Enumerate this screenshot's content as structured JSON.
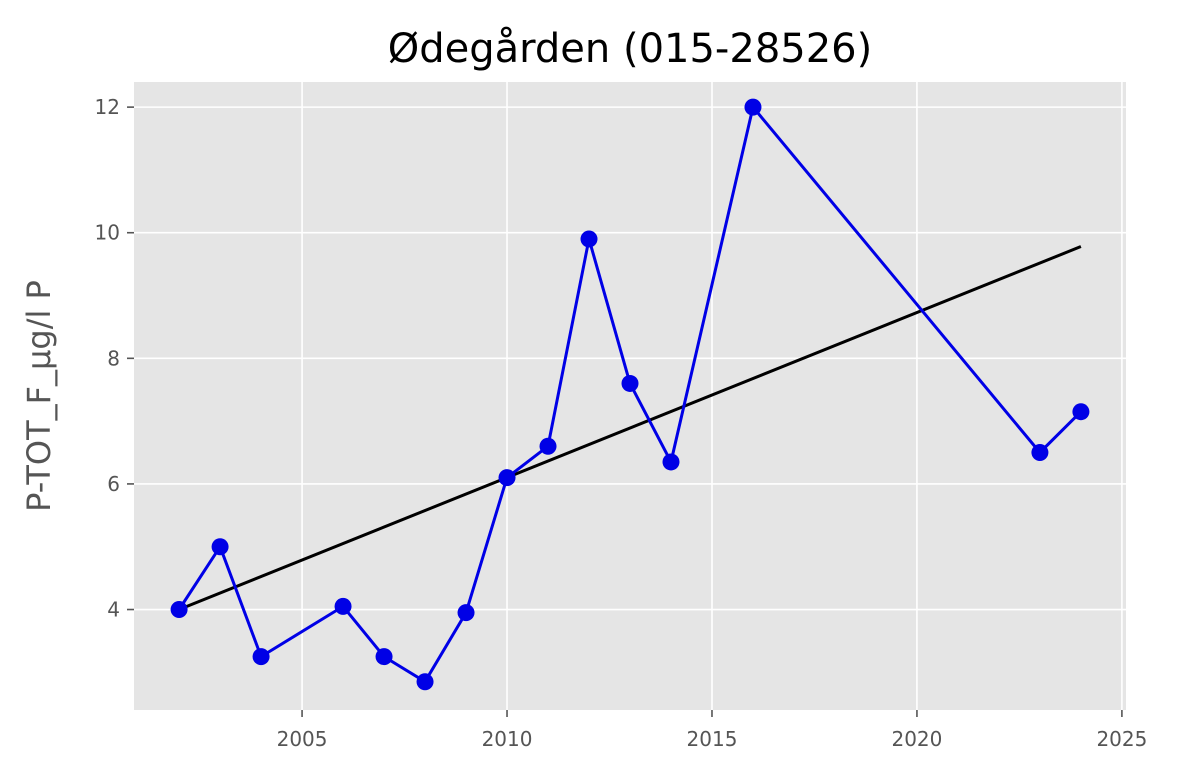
{
  "chart_data": {
    "type": "line",
    "title": "Ødegården (015-28526)",
    "xlabel": "",
    "ylabel": "P-TOT_F_µg/l P",
    "xlim": [
      2000.9,
      2025.1
    ],
    "ylim": [
      2.4,
      12.4
    ],
    "xticks": [
      2005,
      2010,
      2015,
      2020,
      2025
    ],
    "yticks": [
      4,
      6,
      8,
      10,
      12
    ],
    "grid": true,
    "series": [
      {
        "x": [
          2002,
          2003,
          2004,
          2006,
          2007,
          2008,
          2009,
          2010,
          2011,
          2012,
          2013,
          2014,
          2016,
          2023,
          2024
        ],
        "y": [
          4.0,
          5.0,
          3.25,
          4.05,
          3.25,
          2.85,
          3.95,
          6.1,
          6.6,
          9.9,
          7.6,
          6.35,
          12.0,
          6.5,
          7.15
        ],
        "color": "#0000e6",
        "marker": "circle"
      }
    ],
    "trend": {
      "x": [
        2002,
        2024
      ],
      "y": [
        4.0,
        9.78
      ],
      "color": "#000000"
    },
    "colors": {
      "plot_background": "#e5e5e5",
      "grid": "#ffffff",
      "tick_text": "#555555"
    }
  }
}
